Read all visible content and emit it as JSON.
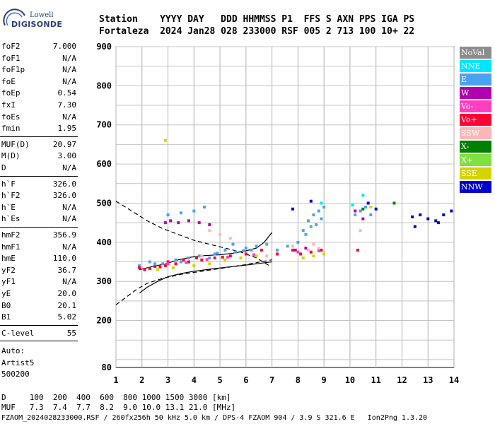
{
  "brand": {
    "line1": "Lowell",
    "line2": "DIGISONDE"
  },
  "header": {
    "row1": "Station    YYYY DAY   DDD HHMMSS P1  FFS S AXN PPS IGA PS",
    "row2": "Fortaleza  2024 Jan28 028 233000 RSF 005 2 713 100 10+ 22"
  },
  "params_group1": [
    {
      "k": "foF2",
      "v": "7.000"
    },
    {
      "k": "foF1",
      "v": "N/A"
    },
    {
      "k": "foF1p",
      "v": "N/A"
    },
    {
      "k": "foE",
      "v": "N/A"
    },
    {
      "k": "foEp",
      "v": "0.54"
    },
    {
      "k": "fxI",
      "v": "7.30"
    },
    {
      "k": "foEs",
      "v": "N/A"
    },
    {
      "k": "fmin",
      "v": "1.95"
    }
  ],
  "params_group2": [
    {
      "k": "MUF(D)",
      "v": "20.97"
    },
    {
      "k": "M(D)",
      "v": "3.00"
    },
    {
      "k": "D",
      "v": "N/A"
    }
  ],
  "params_group3": [
    {
      "k": "h`F",
      "v": "326.0"
    },
    {
      "k": "h`F2",
      "v": "326.0"
    },
    {
      "k": "h`E",
      "v": "N/A"
    },
    {
      "k": "h`Es",
      "v": "N/A"
    }
  ],
  "params_group4": [
    {
      "k": "hmF2",
      "v": "356.9"
    },
    {
      "k": "hmF1",
      "v": "N/A"
    },
    {
      "k": "hmE",
      "v": "110.0"
    },
    {
      "k": "yF2",
      "v": "36.7"
    },
    {
      "k": "yF1",
      "v": "N/A"
    },
    {
      "k": "yE",
      "v": "20.0"
    },
    {
      "k": "B0",
      "v": "20.1"
    },
    {
      "k": "B1",
      "v": "5.02"
    }
  ],
  "clevel": {
    "k": "C-level",
    "v": "55"
  },
  "auto": {
    "line1": "Auto:",
    "line2": "Artist5",
    "line3": "500200"
  },
  "legend": [
    {
      "label": "NoVal",
      "color": "#8c8c8c"
    },
    {
      "label": "NNE",
      "color": "#00e5ff"
    },
    {
      "label": "E",
      "color": "#4aa3f0"
    },
    {
      "label": "W",
      "color": "#b000b0"
    },
    {
      "label": "Vo-",
      "color": "#ff3fc0"
    },
    {
      "label": "Vo+",
      "color": "#ff0033"
    },
    {
      "label": "SSW",
      "color": "#ffb6b6"
    },
    {
      "label": "X-",
      "color": "#008000"
    },
    {
      "label": "X+",
      "color": "#80e040"
    },
    {
      "label": "SSE",
      "color": "#d4d400"
    },
    {
      "label": "NNW",
      "color": "#0000cc"
    }
  ],
  "footer": {
    "line1": "D     100  200  400  600  800 1000 1500 3000 [km]",
    "line2": "MUF   7.3  7.4  7.7  8.2  9.0 10.0 13.1 21.0 [MHz]",
    "line3": "FZAOM_2024028233000.RSF / 260fx256h 50 kHz 5.0 km / DPS-4 FZAOM 904 / 3.9 S 321.6 E   Ion2Png 1.3.20"
  },
  "chart_data": {
    "type": "scatter",
    "xlim": [
      1,
      14
    ],
    "ylim": [
      80,
      900
    ],
    "xticks": [
      1,
      2,
      3,
      4,
      5,
      6,
      7,
      8,
      9,
      10,
      11,
      12,
      13,
      14
    ],
    "yticks": [
      80,
      200,
      300,
      400,
      500,
      600,
      700,
      800,
      900
    ],
    "grid": true,
    "series": [
      {
        "name": "E",
        "color": "#4aa3f0",
        "points": [
          [
            1.9,
            340
          ],
          [
            2.3,
            350
          ],
          [
            2.8,
            345
          ],
          [
            3.3,
            355
          ],
          [
            3.8,
            360
          ],
          [
            4.2,
            365
          ],
          [
            4.8,
            370
          ],
          [
            5.2,
            380
          ],
          [
            5.6,
            375
          ],
          [
            6.0,
            385
          ],
          [
            6.4,
            390
          ],
          [
            6.8,
            395
          ],
          [
            7.2,
            380
          ],
          [
            7.6,
            390
          ],
          [
            8.0,
            400
          ],
          [
            8.2,
            430
          ],
          [
            8.4,
            455
          ],
          [
            8.6,
            470
          ],
          [
            8.8,
            480
          ],
          [
            9.0,
            490
          ],
          [
            10.2,
            470
          ],
          [
            10.4,
            480
          ],
          [
            10.6,
            490
          ],
          [
            10.8,
            470
          ],
          [
            3.0,
            470
          ],
          [
            3.5,
            475
          ],
          [
            4.0,
            480
          ],
          [
            4.4,
            490
          ],
          [
            5.5,
            395
          ],
          [
            6.2,
            380
          ],
          [
            4.6,
            360
          ],
          [
            3.5,
            350
          ],
          [
            2.9,
            342
          ],
          [
            8.3,
            420
          ],
          [
            8.5,
            440
          ],
          [
            8.7,
            445
          ],
          [
            8.9,
            460
          ],
          [
            2.5,
            345
          ],
          [
            4.9,
            372
          ],
          [
            5.9,
            378
          ]
        ]
      },
      {
        "name": "Vo+",
        "color": "#ff0033",
        "points": [
          [
            1.9,
            335
          ],
          [
            2.1,
            330
          ],
          [
            2.5,
            338
          ],
          [
            2.9,
            340
          ],
          [
            3.3,
            345
          ],
          [
            3.8,
            350
          ],
          [
            4.3,
            355
          ],
          [
            4.8,
            360
          ],
          [
            5.4,
            365
          ],
          [
            6.0,
            370
          ],
          [
            6.6,
            380
          ],
          [
            7.2,
            370
          ],
          [
            7.8,
            380
          ],
          [
            8.1,
            370
          ],
          [
            8.5,
            375
          ],
          [
            8.9,
            380
          ],
          [
            10.3,
            380
          ],
          [
            3.0,
            350
          ],
          [
            3.6,
            355
          ],
          [
            4.1,
            360
          ],
          [
            2.3,
            333
          ],
          [
            2.7,
            337
          ],
          [
            5.1,
            362
          ]
        ]
      },
      {
        "name": "W",
        "color": "#b000b0",
        "points": [
          [
            3.1,
            455
          ],
          [
            3.4,
            450
          ],
          [
            3.8,
            455
          ],
          [
            4.2,
            450
          ],
          [
            4.6,
            445
          ],
          [
            2.9,
            450
          ],
          [
            7.9,
            380
          ],
          [
            8.3,
            385
          ],
          [
            10.2,
            480
          ],
          [
            10.5,
            460
          ]
        ]
      },
      {
        "name": "SSW",
        "color": "#ffb6b6",
        "points": [
          [
            4.6,
            430
          ],
          [
            5.0,
            420
          ],
          [
            5.4,
            410
          ],
          [
            7.8,
            390
          ],
          [
            8.4,
            380
          ],
          [
            8.8,
            385
          ],
          [
            10.4,
            430
          ],
          [
            6.8,
            365
          ],
          [
            4.3,
            365
          ],
          [
            8.6,
            395
          ]
        ]
      },
      {
        "name": "SSE",
        "color": "#d4d400",
        "points": [
          [
            2.6,
            330
          ],
          [
            3.2,
            335
          ],
          [
            4.0,
            340
          ],
          [
            4.6,
            345
          ],
          [
            5.2,
            355
          ],
          [
            5.8,
            360
          ],
          [
            6.4,
            365
          ],
          [
            8.2,
            360
          ],
          [
            8.6,
            365
          ],
          [
            9.0,
            370
          ],
          [
            10.8,
            490
          ],
          [
            2.9,
            660
          ]
        ]
      },
      {
        "name": "Vo-",
        "color": "#ff3fc0",
        "points": [
          [
            3.0,
            345
          ],
          [
            3.7,
            348
          ],
          [
            4.5,
            356
          ],
          [
            5.3,
            362
          ],
          [
            6.3,
            368
          ],
          [
            8.0,
            375
          ],
          [
            8.8,
            378
          ]
        ]
      },
      {
        "name": "NNW",
        "color": "#0000cc",
        "points": [
          [
            12.4,
            465
          ],
          [
            12.7,
            470
          ],
          [
            13.0,
            460
          ],
          [
            13.3,
            455
          ],
          [
            13.6,
            470
          ],
          [
            13.9,
            480
          ],
          [
            11.0,
            485
          ],
          [
            10.7,
            500
          ],
          [
            7.8,
            485
          ],
          [
            8.5,
            505
          ],
          [
            12.5,
            440
          ],
          [
            13.4,
            450
          ]
        ]
      },
      {
        "name": "NNE",
        "color": "#00e5ff",
        "points": [
          [
            8.9,
            500
          ],
          [
            10.5,
            520
          ],
          [
            10.1,
            495
          ]
        ]
      },
      {
        "name": "X-",
        "color": "#008000",
        "points": [
          [
            10.5,
            485
          ],
          [
            11.7,
            500
          ]
        ]
      }
    ],
    "lines": [
      {
        "kind": "dashed",
        "points": [
          [
            1,
            505
          ],
          [
            1.6,
            480
          ],
          [
            2.2,
            455
          ],
          [
            2.8,
            435
          ],
          [
            3.4,
            420
          ],
          [
            4.0,
            405
          ],
          [
            4.6,
            395
          ],
          [
            5.2,
            385
          ],
          [
            5.8,
            375
          ],
          [
            6.4,
            360
          ],
          [
            6.9,
            340
          ]
        ]
      },
      {
        "kind": "dashed",
        "points": [
          [
            1,
            240
          ],
          [
            1.4,
            260
          ],
          [
            1.8,
            280
          ],
          [
            2.2,
            295
          ],
          [
            2.8,
            308
          ],
          [
            3.5,
            318
          ],
          [
            4.2,
            325
          ],
          [
            5.0,
            333
          ],
          [
            6.0,
            343
          ],
          [
            7.0,
            355
          ]
        ]
      },
      {
        "kind": "solid",
        "points": [
          [
            1.9,
            270
          ],
          [
            2.2,
            285
          ],
          [
            2.6,
            300
          ],
          [
            3.0,
            312
          ],
          [
            3.5,
            320
          ],
          [
            4.0,
            326
          ],
          [
            4.6,
            331
          ],
          [
            5.2,
            336
          ],
          [
            5.8,
            340
          ],
          [
            6.4,
            345
          ],
          [
            7.0,
            350
          ]
        ]
      },
      {
        "kind": "solid",
        "points": [
          [
            1.9,
            330
          ],
          [
            2.4,
            338
          ],
          [
            2.9,
            345
          ],
          [
            3.4,
            355
          ],
          [
            3.9,
            362
          ],
          [
            4.4,
            366
          ],
          [
            5.0,
            368
          ],
          [
            5.5,
            372
          ],
          [
            6.0,
            378
          ],
          [
            6.4,
            385
          ],
          [
            6.7,
            400
          ],
          [
            7.0,
            425
          ]
        ]
      }
    ]
  }
}
